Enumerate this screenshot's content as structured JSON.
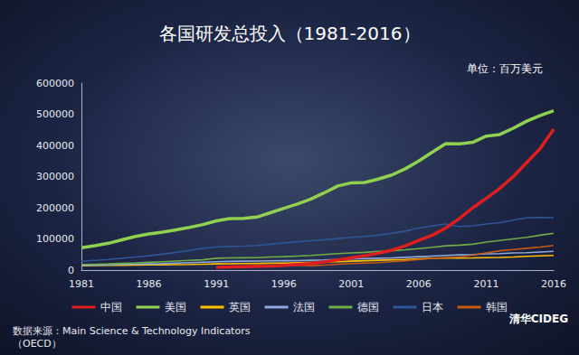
{
  "chart_data": {
    "type": "line",
    "title": "各国研发总投入（1981-2016）",
    "unit": "单位：百万美元",
    "source": "数据来源：Main Science & Technology Indicators\n（OECD）",
    "watermark": "清华CIDEG",
    "categories": [
      "1981",
      null,
      null,
      null,
      null,
      "1986",
      null,
      null,
      null,
      null,
      "1991",
      null,
      null,
      null,
      null,
      "1996",
      null,
      null,
      null,
      null,
      "2001",
      null,
      null,
      null,
      null,
      "2006",
      null,
      null,
      null,
      null,
      "2011",
      null,
      null,
      null,
      null,
      "2016"
    ],
    "series": [
      {
        "name": "中国",
        "color": "#e01e1e",
        "values": [
          null,
          null,
          null,
          null,
          null,
          null,
          null,
          null,
          null,
          null,
          9000,
          10000,
          11000,
          12000,
          13000,
          15000,
          18000,
          21000,
          26000,
          33000,
          39000,
          46000,
          54000,
          64000,
          78000,
          95000,
          112000,
          135000,
          165000,
          200000,
          230000,
          262000,
          300000,
          345000,
          390000,
          452000
        ]
      },
      {
        "name": "美国",
        "color": "#92d050",
        "values": [
          72000,
          78000,
          86000,
          97000,
          108000,
          116000,
          122000,
          129000,
          137000,
          146000,
          158000,
          165000,
          166000,
          170000,
          184000,
          198000,
          212000,
          228000,
          248000,
          270000,
          280000,
          281000,
          292000,
          305000,
          325000,
          350000,
          378000,
          406000,
          405000,
          410000,
          430000,
          435000,
          455000,
          478000,
          496000,
          511000
        ]
      },
      {
        "name": "英国",
        "color": "#ffc000",
        "values": [
          14000,
          14500,
          15000,
          15500,
          16000,
          16500,
          17000,
          17500,
          18000,
          19000,
          20000,
          20500,
          21000,
          21500,
          22000,
          22500,
          23500,
          24500,
          25500,
          27000,
          28500,
          30000,
          31500,
          33000,
          34000,
          36000,
          38000,
          39000,
          38500,
          39000,
          40000,
          40500,
          42000,
          44000,
          45500,
          47000
        ]
      },
      {
        "name": "法国",
        "color": "#8ea9db",
        "values": [
          15000,
          16000,
          17000,
          18000,
          19000,
          20000,
          21000,
          22500,
          24000,
          25500,
          27000,
          28000,
          28500,
          29000,
          29500,
          30000,
          30500,
          31500,
          32500,
          34000,
          35500,
          37000,
          38000,
          39000,
          41000,
          43000,
          45000,
          47000,
          49000,
          50000,
          52000,
          53000,
          55000,
          56000,
          58000,
          60000
        ]
      },
      {
        "name": "德国",
        "color": "#70ad47",
        "values": [
          18000,
          19000,
          20000,
          21500,
          23000,
          25000,
          27000,
          29000,
          31000,
          33000,
          38000,
          39000,
          39500,
          40000,
          42000,
          43000,
          45000,
          47000,
          50000,
          53000,
          55000,
          57000,
          60000,
          62000,
          65000,
          69000,
          73000,
          78000,
          80000,
          83000,
          90000,
          95000,
          100000,
          105000,
          112000,
          118000
        ]
      },
      {
        "name": "日本",
        "color": "#2f5597",
        "values": [
          28000,
          31000,
          34000,
          38000,
          42000,
          46000,
          51000,
          57000,
          63000,
          70000,
          74000,
          76000,
          77000,
          79000,
          83000,
          87000,
          91000,
          94000,
          97000,
          101000,
          105000,
          108000,
          112000,
          118000,
          125000,
          135000,
          142000,
          148000,
          140000,
          142000,
          148000,
          152000,
          160000,
          168000,
          169000,
          168000
        ]
      },
      {
        "name": "韩国",
        "color": "#c55a11",
        "values": [
          null,
          null,
          null,
          null,
          null,
          null,
          null,
          null,
          null,
          null,
          8000,
          9000,
          10000,
          12000,
          14000,
          15500,
          16000,
          14000,
          16000,
          19000,
          21000,
          22500,
          24000,
          27000,
          30000,
          34000,
          38000,
          40000,
          42000,
          48000,
          55000,
          62000,
          66000,
          70000,
          74000,
          79000
        ]
      }
    ],
    "ylim": [
      0,
      600000
    ],
    "yticks": [
      0,
      100000,
      200000,
      300000,
      400000,
      500000,
      600000
    ],
    "grid": false,
    "legend": "bottom"
  }
}
